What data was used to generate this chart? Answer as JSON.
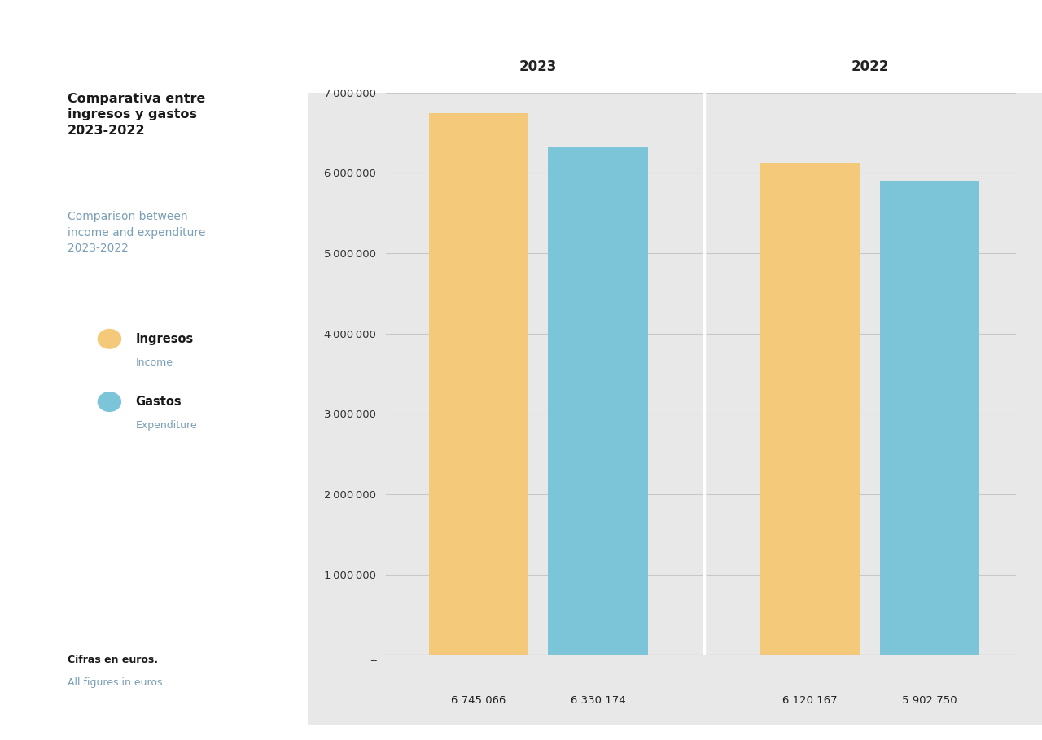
{
  "title_es": "Comparativa entre\ningresos y gastos\n2023-2022",
  "title_en": "Comparison between\nincome and expenditure\n2023-2022",
  "legend_income_es": "Ingresos",
  "legend_income_en": "Income",
  "legend_expenditure_es": "Gastos",
  "legend_expenditure_en": "Expenditure",
  "footnote_es": "Cifras en euros.",
  "footnote_en": "All figures in euros.",
  "year_2023_label": "2023",
  "year_2022_label": "2022",
  "income_2023": 6745066,
  "expenditure_2023": 6330174,
  "income_2022": 6120167,
  "expenditure_2022": 5902750,
  "bar_label_2023_income": "6 745 066",
  "bar_label_2023_expenditure": "6 330 174",
  "bar_label_2022_income": "6 120 167",
  "bar_label_2022_expenditure": "5 902 750",
  "color_income": "#F5C97A",
  "color_expenditure": "#7CC5D9",
  "background_color": "#E8E8E8",
  "left_panel_color": "#FFFFFF",
  "ylim_min": 0,
  "ylim_max": 7000000,
  "ytick_step": 1000000,
  "zero_label": "_",
  "title_es_color": "#1a1a1a",
  "title_en_color": "#7A9EB5",
  "footnote_es_color": "#1a1a1a",
  "footnote_en_color": "#7A9EB5",
  "legend_main_color": "#1a1a1a",
  "legend_sub_color": "#7A9EB5",
  "divider_color": "#FFFFFF",
  "grid_color": "#C8C8C8",
  "axis_line_color": "#AAAAAA",
  "ytick_color": "#333333",
  "bar_label_color": "#222222",
  "year_label_color": "#222222"
}
